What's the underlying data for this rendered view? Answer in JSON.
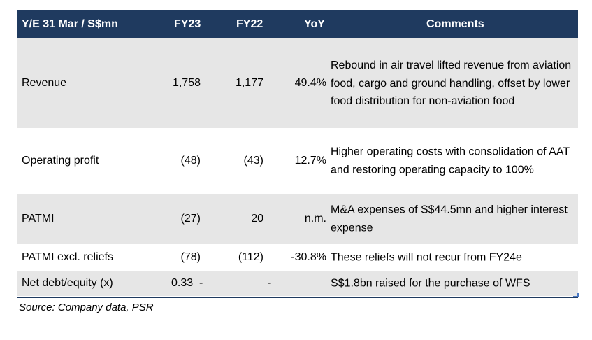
{
  "header": {
    "label": "Y/E 31 Mar / S$mn",
    "fy23": "FY23",
    "fy22": "FY22",
    "yoy": "YoY",
    "comments": "Comments"
  },
  "rows": [
    {
      "label": "Revenue",
      "fy23": "1,758",
      "fy22": "1,177",
      "yoy": "49.4%",
      "comment": "Rebound in air travel lifted revenue from aviation food, cargo and ground handling, offset by lower food distribution for non-aviation food"
    },
    {
      "label": "Operating profit",
      "fy23": "(48)",
      "fy22": "(43)",
      "yoy": "12.7%",
      "comment": "Higher operating costs with consolidation of AAT and restoring operating capacity to 100%"
    },
    {
      "label": "PATMI",
      "fy23": "(27)",
      "fy22": "20",
      "yoy": "n.m.",
      "comment": "M&A expenses of S$44.5mn and higher interest expense"
    },
    {
      "label": "PATMI excl. reliefs",
      "fy23": "(78)",
      "fy22": "(112)",
      "yoy": "-30.8%",
      "comment": "These reliefs will not recur from FY24e"
    },
    {
      "label": "Net debt/equity (x)",
      "fy23": "0.33  -",
      "fy22": "-",
      "yoy": "",
      "comment": "S$1.8bn raised for the purchase of WFS"
    }
  ],
  "source": "Source: Company data, PSR"
}
